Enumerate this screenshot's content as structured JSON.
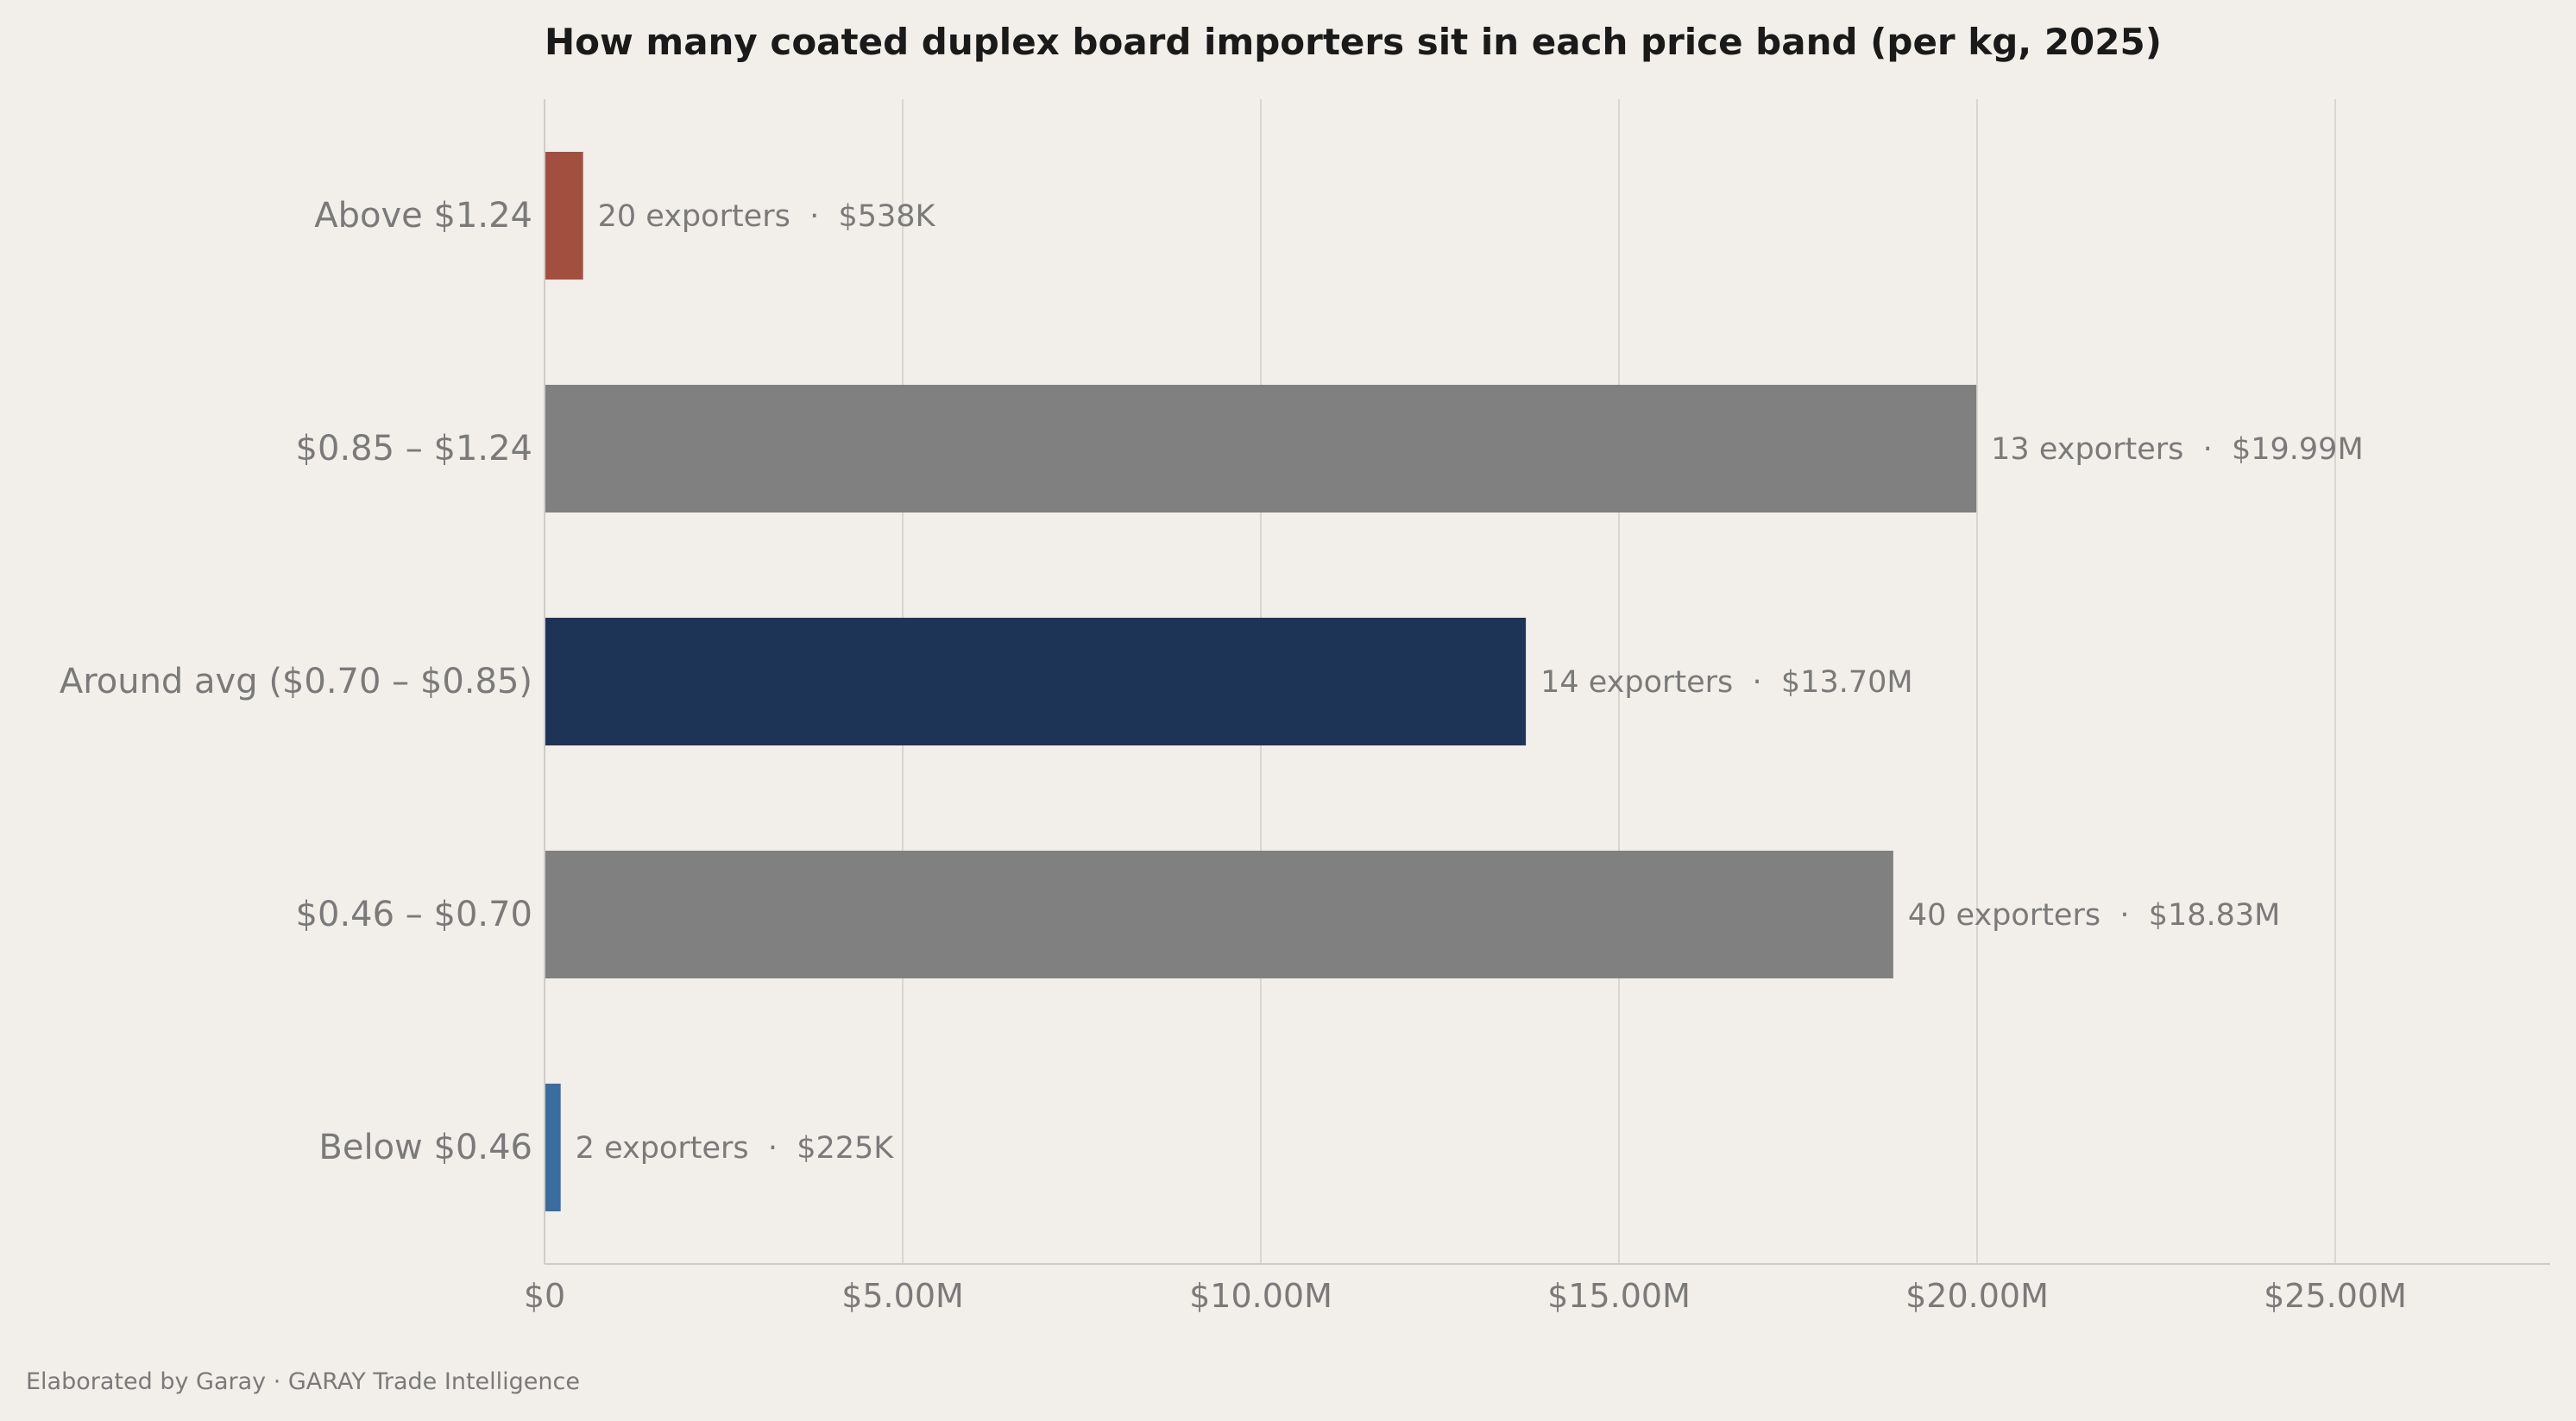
{
  "chart_data": {
    "type": "bar",
    "orientation": "horizontal",
    "title": "How many coated duplex board importers sit in each price band (per kg, 2025)",
    "xlabel": "",
    "ylabel": "",
    "xlim": [
      0,
      28000000
    ],
    "grid": "vertical",
    "ticks": [
      {
        "value": 0,
        "label": "$0"
      },
      {
        "value": 5000000,
        "label": "$5.00M"
      },
      {
        "value": 10000000,
        "label": "$10.00M"
      },
      {
        "value": 15000000,
        "label": "$15.00M"
      },
      {
        "value": 20000000,
        "label": "$20.00M"
      },
      {
        "value": 25000000,
        "label": "$25.00M"
      }
    ],
    "categories": [
      "Above $1.24",
      "$0.85 – $1.24",
      "Around avg ($0.70 – $0.85)",
      "$0.46 – $0.70",
      "Below $0.46"
    ],
    "values": [
      538000,
      19990000,
      13700000,
      18830000,
      225000
    ],
    "exporters": [
      20,
      13,
      14,
      40,
      2
    ],
    "bar_labels": [
      "20 exporters  ·  $538K",
      "13 exporters  ·  $19.99M",
      "14 exporters  ·  $13.70M",
      "40 exporters  ·  $18.83M",
      "2 exporters  ·  $225K"
    ],
    "colors": [
      "#a34f40",
      "#808080",
      "#1e3456",
      "#808080",
      "#3a6d9e"
    ]
  },
  "footer": "Elaborated by Garay  ·  GARAY Trade Intelligence",
  "theme": {
    "background": "#f2eeea",
    "grid": "#d9d6d2",
    "axis": "#cfcbc7"
  }
}
